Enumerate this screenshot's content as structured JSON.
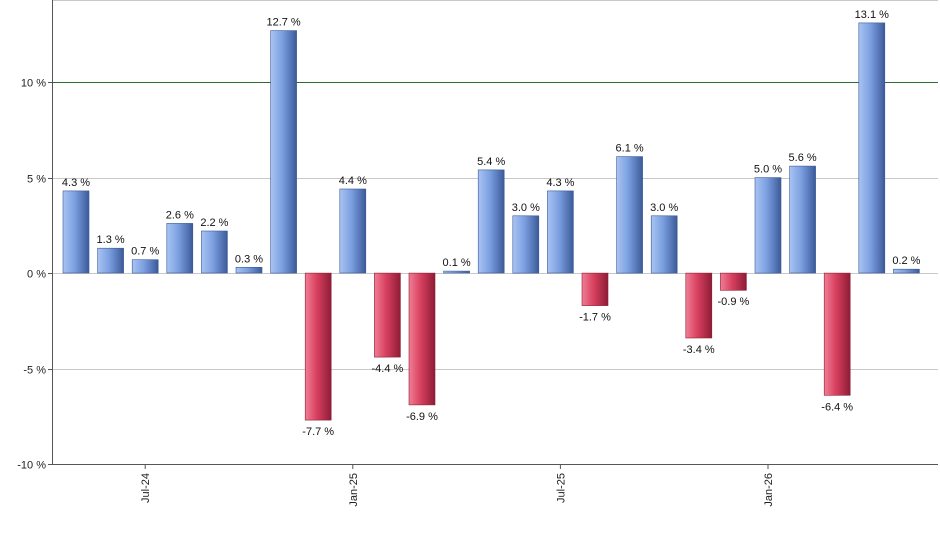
{
  "chart_data": {
    "type": "bar",
    "title": "",
    "xlabel": "",
    "ylabel": "",
    "ylim": [
      -10,
      14.3
    ],
    "yticks": [
      {
        "value": 10,
        "label": "10 %"
      },
      {
        "value": 5,
        "label": "5 %"
      },
      {
        "value": 0,
        "label": "0 %"
      },
      {
        "value": -5,
        "label": "-5 %"
      },
      {
        "value": -10,
        "label": "-10 %"
      }
    ],
    "grid": true,
    "reference_line": {
      "value": 10,
      "color": "#2e6b2e"
    },
    "x_tick_labels": [
      {
        "index": 2,
        "label": "Jul-24"
      },
      {
        "index": 8,
        "label": "Jan-25"
      },
      {
        "index": 14,
        "label": "Jul-25"
      },
      {
        "index": 20,
        "label": "Jan-26"
      }
    ],
    "values": [
      4.3,
      1.3,
      0.7,
      2.6,
      2.2,
      0.3,
      12.7,
      -7.7,
      4.4,
      -4.4,
      -6.9,
      0.1,
      5.4,
      3.0,
      4.3,
      -1.7,
      6.1,
      3.0,
      -3.4,
      -0.9,
      5.0,
      5.6,
      -6.4,
      13.1,
      0.2
    ],
    "labels": [
      "4.3 %",
      "1.3 %",
      "0.7 %",
      "2.6 %",
      "2.2 %",
      "0.3 %",
      "12.7 %",
      "-7.7 %",
      "4.4 %",
      "-4.4 %",
      "-6.9 %",
      "0.1 %",
      "5.4 %",
      "3.0 %",
      "4.3 %",
      "-1.7 %",
      "6.1 %",
      "3.0 %",
      "-3.4 %",
      "-0.9 %",
      "5.0 %",
      "5.6 %",
      "-6.4 %",
      "13.1 %",
      "0.2 %"
    ],
    "colors": {
      "positive": "#6f93d6",
      "negative": "#cc3355",
      "grid": "#c8c8c8",
      "axis": "#555555"
    }
  }
}
